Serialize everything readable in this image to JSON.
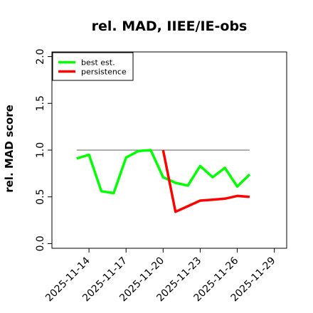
{
  "chart_data": {
    "type": "line",
    "title": "rel. MAD, IIEE/IE-obs",
    "xlabel": "",
    "ylabel": "rel. MAD score",
    "ylim": [
      -0.05,
      2.05
    ],
    "yticks": [
      0.0,
      0.5,
      1.0,
      1.5,
      2.0
    ],
    "ytick_labels": [
      "0.0",
      "0.5",
      "1.0",
      "1.5",
      "2.0"
    ],
    "xlim": [
      "2025-11-11",
      "2025-11-30"
    ],
    "xticks": [
      "2025-11-14",
      "2025-11-17",
      "2025-11-20",
      "2025-11-23",
      "2025-11-26",
      "2025-11-29"
    ],
    "xtick_labels": [
      "2025-11-14",
      "2025-11-17",
      "2025-11-20",
      "2025-11-23",
      "2025-11-26",
      "2025-11-29"
    ],
    "grid": false,
    "legend": "top-left",
    "reference_line": {
      "y": 1.0,
      "x_start": "2025-11-13",
      "x_end": "2025-11-27",
      "color": "#7f7f7f"
    },
    "series": [
      {
        "name": "best est.",
        "color": "#00ff00",
        "x": [
          "2025-11-13",
          "2025-11-14",
          "2025-11-15",
          "2025-11-16",
          "2025-11-17",
          "2025-11-18",
          "2025-11-19",
          "2025-11-20",
          "2025-11-21",
          "2025-11-22",
          "2025-11-23",
          "2025-11-24",
          "2025-11-25",
          "2025-11-26",
          "2025-11-27"
        ],
        "values": [
          0.91,
          0.95,
          0.56,
          0.54,
          0.92,
          0.99,
          1.0,
          0.71,
          0.65,
          0.62,
          0.83,
          0.71,
          0.81,
          0.61,
          0.74
        ]
      },
      {
        "name": "persistence",
        "color": "#ff0000",
        "x": [
          "2025-11-20",
          "2025-11-21",
          "2025-11-22",
          "2025-11-23",
          "2025-11-24",
          "2025-11-25",
          "2025-11-26",
          "2025-11-27"
        ],
        "values": [
          1.0,
          0.34,
          0.4,
          0.46,
          0.47,
          0.48,
          0.51,
          0.5
        ]
      }
    ]
  }
}
